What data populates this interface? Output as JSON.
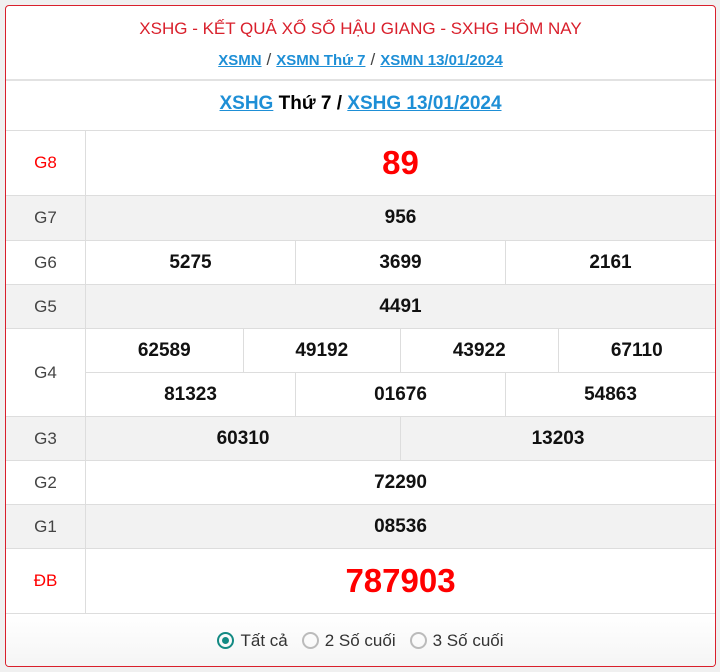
{
  "header": {
    "title": "XSHG - KẾT QUẢ XỔ SỐ HẬU GIANG - SXHG HÔM NAY",
    "breadcrumbs": [
      "XSMN",
      "XSMN Thứ 7",
      "XSMN 13/01/2024"
    ],
    "separator": "/"
  },
  "subheader": {
    "link1": "XSHG",
    "day": "Thứ 7",
    "sep": "/",
    "link2": "XSHG 13/01/2024"
  },
  "prizes": [
    {
      "label": "G8",
      "rows": [
        [
          "89"
        ]
      ]
    },
    {
      "label": "G7",
      "rows": [
        [
          "956"
        ]
      ]
    },
    {
      "label": "G6",
      "rows": [
        [
          "5275",
          "3699",
          "2161"
        ]
      ]
    },
    {
      "label": "G5",
      "rows": [
        [
          "4491"
        ]
      ]
    },
    {
      "label": "G4",
      "rows": [
        [
          "62589",
          "49192",
          "43922",
          "67110"
        ],
        [
          "81323",
          "01676",
          "54863"
        ]
      ]
    },
    {
      "label": "G3",
      "rows": [
        [
          "60310",
          "13203"
        ]
      ]
    },
    {
      "label": "G2",
      "rows": [
        [
          "72290"
        ]
      ]
    },
    {
      "label": "G1",
      "rows": [
        [
          "08536"
        ]
      ]
    },
    {
      "label": "ĐB",
      "rows": [
        [
          "787903"
        ]
      ]
    }
  ],
  "filter": {
    "options": [
      "Tất cả",
      "2 Số cuối",
      "3 Số cuối"
    ],
    "selected": 0
  },
  "colors": {
    "accent": "#d9202c",
    "link": "#1e8fd6",
    "radio": "#138a83",
    "highlight": "#ff0000"
  }
}
